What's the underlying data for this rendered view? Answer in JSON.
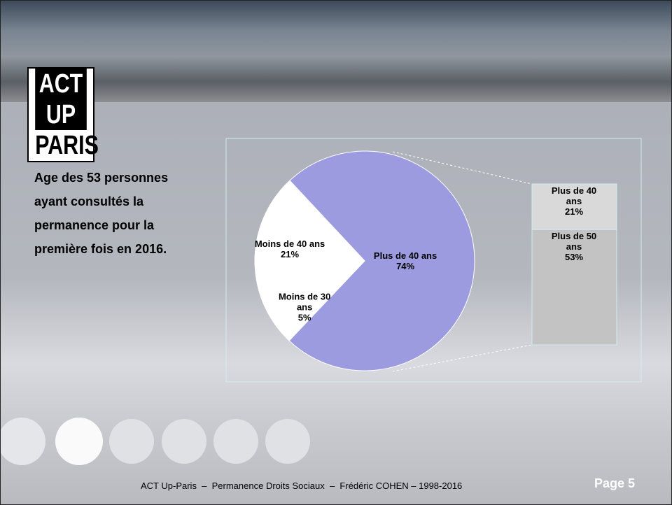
{
  "logo": [
    "ACT UP",
    "PARIS"
  ],
  "footer": "ACT Up-Paris  –  Permanence Droits Sociaux  –  Frédéric COHEN – 1998-2016",
  "page": "Page 5",
  "chart_data": {
    "type": "pie",
    "title": "Age des 53 personnes ayant consultés la permanence pour la première fois en 2016.",
    "categories": [
      "Plus de 40 ans",
      "Moins de 30 ans",
      "Moins de 40 ans"
    ],
    "values": [
      74,
      5,
      21
    ],
    "value_labels": [
      "74%",
      "5%",
      "21%"
    ],
    "colors": [
      "#9d9bdf",
      "#ffffff",
      "#ffffff"
    ],
    "breakdown": {
      "categories": [
        "Plus de 40 ans",
        "Plus de 50 ans"
      ],
      "values": [
        21,
        53
      ],
      "value_labels": [
        "21%",
        "53%"
      ],
      "colors": [
        "#d9d9d9",
        "#c3c3c3"
      ]
    }
  }
}
